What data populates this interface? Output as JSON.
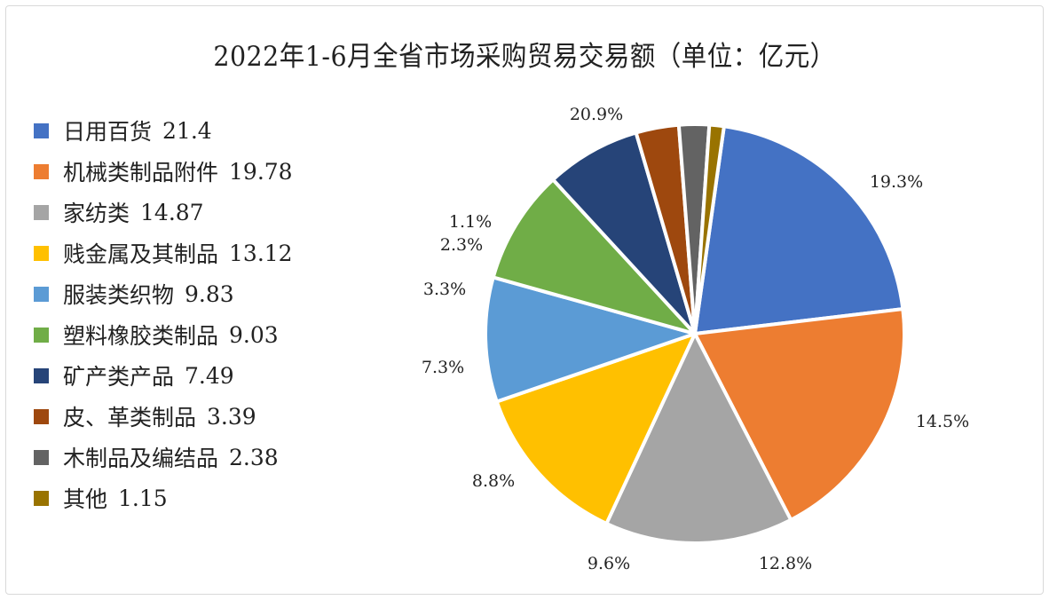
{
  "chart_data": {
    "type": "pie",
    "title": "2022年1-6月全省市场采购贸易交易额（单位：亿元）",
    "unit": "亿元",
    "legend_position": "left",
    "categories": [
      "日用百货",
      "机械类制品附件",
      "家纺类",
      "贱金属及其制品",
      "服装类织物",
      "塑料橡胶类制品",
      "矿产类产品",
      "皮、革类制品",
      "木制品及编结品",
      "其他"
    ],
    "values": [
      21.4,
      19.78,
      14.87,
      13.12,
      9.83,
      9.03,
      7.49,
      3.39,
      2.38,
      1.15
    ],
    "percent_labels": [
      "20.9%",
      "19.3%",
      "14.5%",
      "12.8%",
      "9.6%",
      "8.8%",
      "7.3%",
      "3.3%",
      "2.3%",
      "1.1%"
    ],
    "colors": [
      "#4472C4",
      "#ED7D31",
      "#A5A5A5",
      "#FFC000",
      "#5B9BD5",
      "#70AD47",
      "#264478",
      "#9E480E",
      "#636363",
      "#997300"
    ]
  },
  "legend": {
    "items": [
      {
        "label": "日用百货",
        "value": "21.4"
      },
      {
        "label": "机械类制品附件",
        "value": "19.78"
      },
      {
        "label": "家纺类",
        "value": "14.87"
      },
      {
        "label": "贱金属及其制品",
        "value": "13.12"
      },
      {
        "label": "服装类织物",
        "value": "9.83"
      },
      {
        "label": "塑料橡胶类制品",
        "value": "9.03"
      },
      {
        "label": "矿产类产品",
        "value": "7.49"
      },
      {
        "label": "皮、革类制品",
        "value": "3.39"
      },
      {
        "label": "木制品及编结品",
        "value": "2.38"
      },
      {
        "label": "其他",
        "value": "1.15"
      }
    ]
  }
}
